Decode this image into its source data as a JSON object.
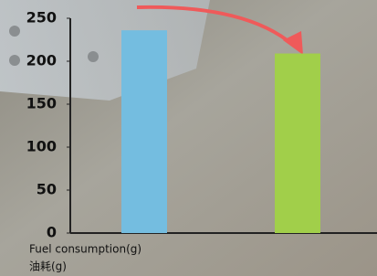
{
  "chart_data": {
    "type": "bar",
    "ylabel": [
      "Fuel consumption(g)",
      "油耗(g)"
    ],
    "categories": [
      null,
      null
    ],
    "values": [
      236,
      209
    ],
    "colors": [
      "#74bde0",
      "#a1cf4a"
    ],
    "ylim": [
      0,
      250
    ],
    "yticks": [
      0,
      50,
      100,
      150,
      200,
      250
    ],
    "grid": false
  }
}
